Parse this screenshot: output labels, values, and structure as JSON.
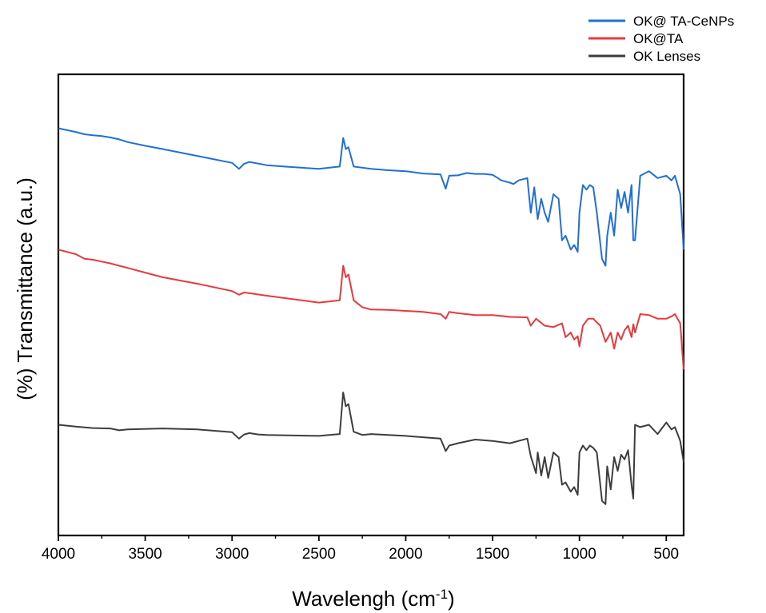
{
  "chart_data": {
    "type": "line",
    "xlabel_main": "Wavelengh (cm",
    "xlabel_sup": "-1",
    "xlabel_end": ")",
    "ylabel": "(%) Transmittance (a.u.)",
    "xlim": [
      4000,
      400
    ],
    "x_reversed": true,
    "y_ticks_shown": false,
    "grid": false,
    "legend_position": "top-right",
    "x_ticks": [
      "4000",
      "3500",
      "3000",
      "2500",
      "2000",
      "1500",
      "1000",
      "500"
    ],
    "x_tick_values": [
      4000,
      3500,
      3000,
      2500,
      2000,
      1500,
      1000,
      500
    ],
    "series": [
      {
        "name": "OK@ TA-CeNPs",
        "color": "#1f6fd6",
        "x": [
          4000,
          3900,
          3850,
          3800,
          3750,
          3700,
          3650,
          3600,
          3500,
          3400,
          3200,
          3000,
          2960,
          2930,
          2900,
          2800,
          2700,
          2500,
          2380,
          2360,
          2345,
          2330,
          2300,
          2200,
          2100,
          2000,
          1900,
          1800,
          1770,
          1750,
          1700,
          1650,
          1600,
          1550,
          1500,
          1470,
          1450,
          1400,
          1380,
          1350,
          1300,
          1280,
          1260,
          1240,
          1220,
          1200,
          1180,
          1150,
          1120,
          1100,
          1080,
          1050,
          1030,
          1010,
          1000,
          980,
          960,
          940,
          920,
          900,
          870,
          850,
          840,
          820,
          800,
          780,
          760,
          740,
          720,
          700,
          690,
          680,
          650,
          600,
          550,
          500,
          470,
          450,
          420,
          400
        ],
        "y": [
          0.883,
          0.875,
          0.87,
          0.868,
          0.866,
          0.863,
          0.859,
          0.853,
          0.845,
          0.838,
          0.823,
          0.808,
          0.795,
          0.806,
          0.81,
          0.803,
          0.8,
          0.795,
          0.8,
          0.862,
          0.838,
          0.842,
          0.8,
          0.795,
          0.792,
          0.79,
          0.785,
          0.783,
          0.752,
          0.78,
          0.781,
          0.786,
          0.784,
          0.784,
          0.782,
          0.775,
          0.77,
          0.765,
          0.762,
          0.77,
          0.775,
          0.7,
          0.755,
          0.686,
          0.73,
          0.7,
          0.68,
          0.74,
          0.73,
          0.64,
          0.65,
          0.62,
          0.63,
          0.615,
          0.7,
          0.76,
          0.75,
          0.76,
          0.755,
          0.7,
          0.6,
          0.585,
          0.65,
          0.7,
          0.65,
          0.75,
          0.71,
          0.745,
          0.7,
          0.76,
          0.64,
          0.64,
          0.78,
          0.79,
          0.775,
          0.78,
          0.77,
          0.78,
          0.74,
          0.62
        ]
      },
      {
        "name": "OK@TA",
        "color": "#e8393d",
        "x": [
          4000,
          3900,
          3850,
          3800,
          3750,
          3700,
          3650,
          3600,
          3500,
          3400,
          3200,
          3000,
          2960,
          2930,
          2800,
          2500,
          2380,
          2360,
          2345,
          2330,
          2300,
          2250,
          2200,
          2100,
          2000,
          1900,
          1800,
          1770,
          1750,
          1700,
          1600,
          1500,
          1400,
          1300,
          1280,
          1250,
          1200,
          1150,
          1100,
          1080,
          1050,
          1030,
          1010,
          1000,
          980,
          950,
          920,
          900,
          880,
          850,
          820,
          800,
          780,
          760,
          740,
          720,
          700,
          690,
          680,
          650,
          600,
          550,
          500,
          470,
          450,
          420,
          400
        ],
        "y": [
          0.62,
          0.61,
          0.6,
          0.598,
          0.594,
          0.59,
          0.585,
          0.58,
          0.57,
          0.56,
          0.546,
          0.53,
          0.522,
          0.527,
          0.52,
          0.505,
          0.51,
          0.585,
          0.56,
          0.566,
          0.51,
          0.495,
          0.49,
          0.489,
          0.487,
          0.485,
          0.48,
          0.47,
          0.485,
          0.482,
          0.478,
          0.478,
          0.474,
          0.473,
          0.455,
          0.47,
          0.455,
          0.452,
          0.46,
          0.43,
          0.44,
          0.425,
          0.432,
          0.41,
          0.455,
          0.47,
          0.47,
          0.462,
          0.455,
          0.42,
          0.44,
          0.405,
          0.44,
          0.425,
          0.445,
          0.455,
          0.43,
          0.458,
          0.44,
          0.48,
          0.478,
          0.47,
          0.47,
          0.475,
          0.48,
          0.46,
          0.36
        ]
      },
      {
        "name": "OK Lenses",
        "color": "#3d3d3d",
        "x": [
          4000,
          3900,
          3800,
          3700,
          3650,
          3600,
          3400,
          3200,
          3000,
          2960,
          2930,
          2900,
          2850,
          2800,
          2500,
          2380,
          2360,
          2345,
          2330,
          2300,
          2250,
          2200,
          2100,
          2000,
          1900,
          1800,
          1770,
          1750,
          1700,
          1600,
          1500,
          1400,
          1350,
          1300,
          1280,
          1250,
          1240,
          1220,
          1200,
          1180,
          1150,
          1120,
          1100,
          1080,
          1050,
          1030,
          1010,
          1000,
          980,
          960,
          940,
          920,
          900,
          870,
          850,
          840,
          820,
          800,
          780,
          760,
          740,
          720,
          700,
          690,
          680,
          650,
          600,
          550,
          500,
          470,
          450,
          420,
          400
        ],
        "y": [
          0.24,
          0.236,
          0.233,
          0.232,
          0.228,
          0.23,
          0.232,
          0.23,
          0.224,
          0.21,
          0.219,
          0.222,
          0.219,
          0.218,
          0.216,
          0.22,
          0.31,
          0.28,
          0.285,
          0.225,
          0.218,
          0.22,
          0.218,
          0.216,
          0.213,
          0.21,
          0.183,
          0.195,
          0.2,
          0.208,
          0.205,
          0.2,
          0.205,
          0.21,
          0.172,
          0.135,
          0.18,
          0.13,
          0.17,
          0.125,
          0.18,
          0.17,
          0.11,
          0.115,
          0.095,
          0.105,
          0.088,
          0.18,
          0.195,
          0.185,
          0.195,
          0.19,
          0.18,
          0.075,
          0.068,
          0.15,
          0.1,
          0.17,
          0.14,
          0.175,
          0.165,
          0.185,
          0.11,
          0.08,
          0.24,
          0.235,
          0.24,
          0.22,
          0.245,
          0.23,
          0.235,
          0.205,
          0.16
        ]
      }
    ]
  }
}
